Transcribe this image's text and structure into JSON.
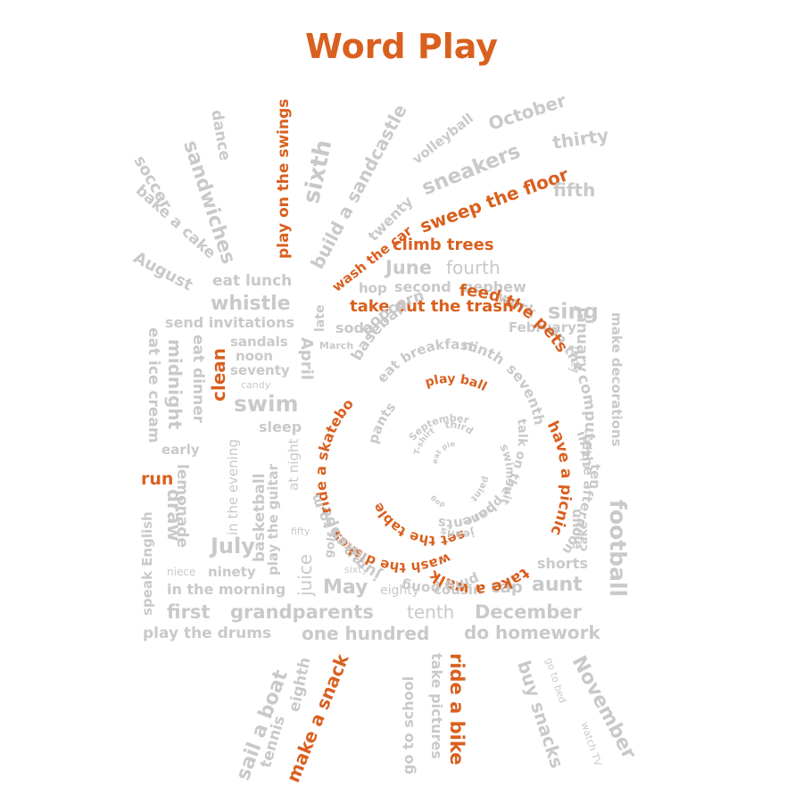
{
  "title": "Word Play",
  "colors": {
    "accent": "#d9601f",
    "muted": "#c9c9c9"
  },
  "words": {
    "w1": "soccer",
    "w2": "bake a cake",
    "w3": "sandwiches",
    "w4": "dance",
    "w5": "play on the swings",
    "w6": "sixth",
    "w7": "build a sandcastle",
    "w8": "twenty",
    "w9": "wash the car",
    "w10": "volleyball",
    "w11": "October",
    "w12": "sneakers",
    "w13": "thirty",
    "w14": "sweep the floor",
    "w15": "fifth",
    "w16": "August",
    "w17": "eat lunch",
    "w18": "climb trees",
    "w19": "June",
    "w20": "fourth",
    "w21": "whistle",
    "w22": "hop",
    "w23": "second",
    "w24": "nephew",
    "w25": "send invitations",
    "w26": "late",
    "w27": "take out the trash",
    "w28": "sing",
    "w29": "soda",
    "w30": "February",
    "w31": "January",
    "w32": "eat ice cream",
    "w33": "midnight",
    "w34": "eat dinner",
    "w35": "clean",
    "w36": "sandals",
    "w37": "noon",
    "w38": "seventy",
    "w39": "candy",
    "w40": "March",
    "w41": "April",
    "w42": "swim",
    "w43": "forty",
    "w44": "make decorations",
    "w45": "sleep",
    "w46": "early",
    "w47": "in the evening",
    "w48": "basketball",
    "w49": "at night",
    "w50": "run",
    "w51": "lemonade",
    "w52": "chips",
    "w53": "ten",
    "w54": "draw",
    "w55": "play the guitar",
    "w56": "speak English",
    "w57": "fifty",
    "w58": "July",
    "w59": "juice",
    "w60": "golf",
    "w61": "cake",
    "w62": "uncle",
    "w63": "football",
    "w64": "niece",
    "w65": "ninety",
    "w66": "sixty",
    "w67": "shorts",
    "w68": "in the morning",
    "w69": "May",
    "w70": "eighty",
    "w71": "cousin",
    "w72": "cap",
    "w73": "aunt",
    "w74": "first",
    "w75": "grandparents",
    "w76": "tenth",
    "w77": "December",
    "w78": "play the drums",
    "w79": "one hundred",
    "w80": "do homework",
    "w81": "sail a boat",
    "w82": "tennis",
    "w83": "eighth",
    "w84": "make a snack",
    "w85": "go to school",
    "w86": "take pictures",
    "w87": "ride a bike",
    "w88": "buy snacks",
    "w89": "go to bed",
    "w90": "watch TV",
    "w91": "November"
  },
  "spiral": {
    "s1": "popcorn",
    "s2": "work",
    "s3": "on the",
    "s4": "computer",
    "s5": "in the afternoon",
    "s6": "take a walk",
    "s7": "ping pong",
    "s8": "jump rope",
    "s9": "ride a skateboard",
    "s10": "baseball",
    "s11": "feed the pets",
    "s12": "have a picnic",
    "s13": "wash the dishes",
    "s14": "listen to music",
    "s15": "eat breakfast",
    "s16": "ninth",
    "s17": "seventh",
    "s18": "talk on the phone",
    "s19": "parents",
    "s20": "set the table",
    "s21": "pants",
    "s22": "play ball",
    "s23": "swimsuit",
    "s24": "jeans",
    "s25": "September",
    "s26": "third",
    "s27": "T-shirt",
    "s28": "paint",
    "s29": "eat pie",
    "s30": "dog"
  }
}
